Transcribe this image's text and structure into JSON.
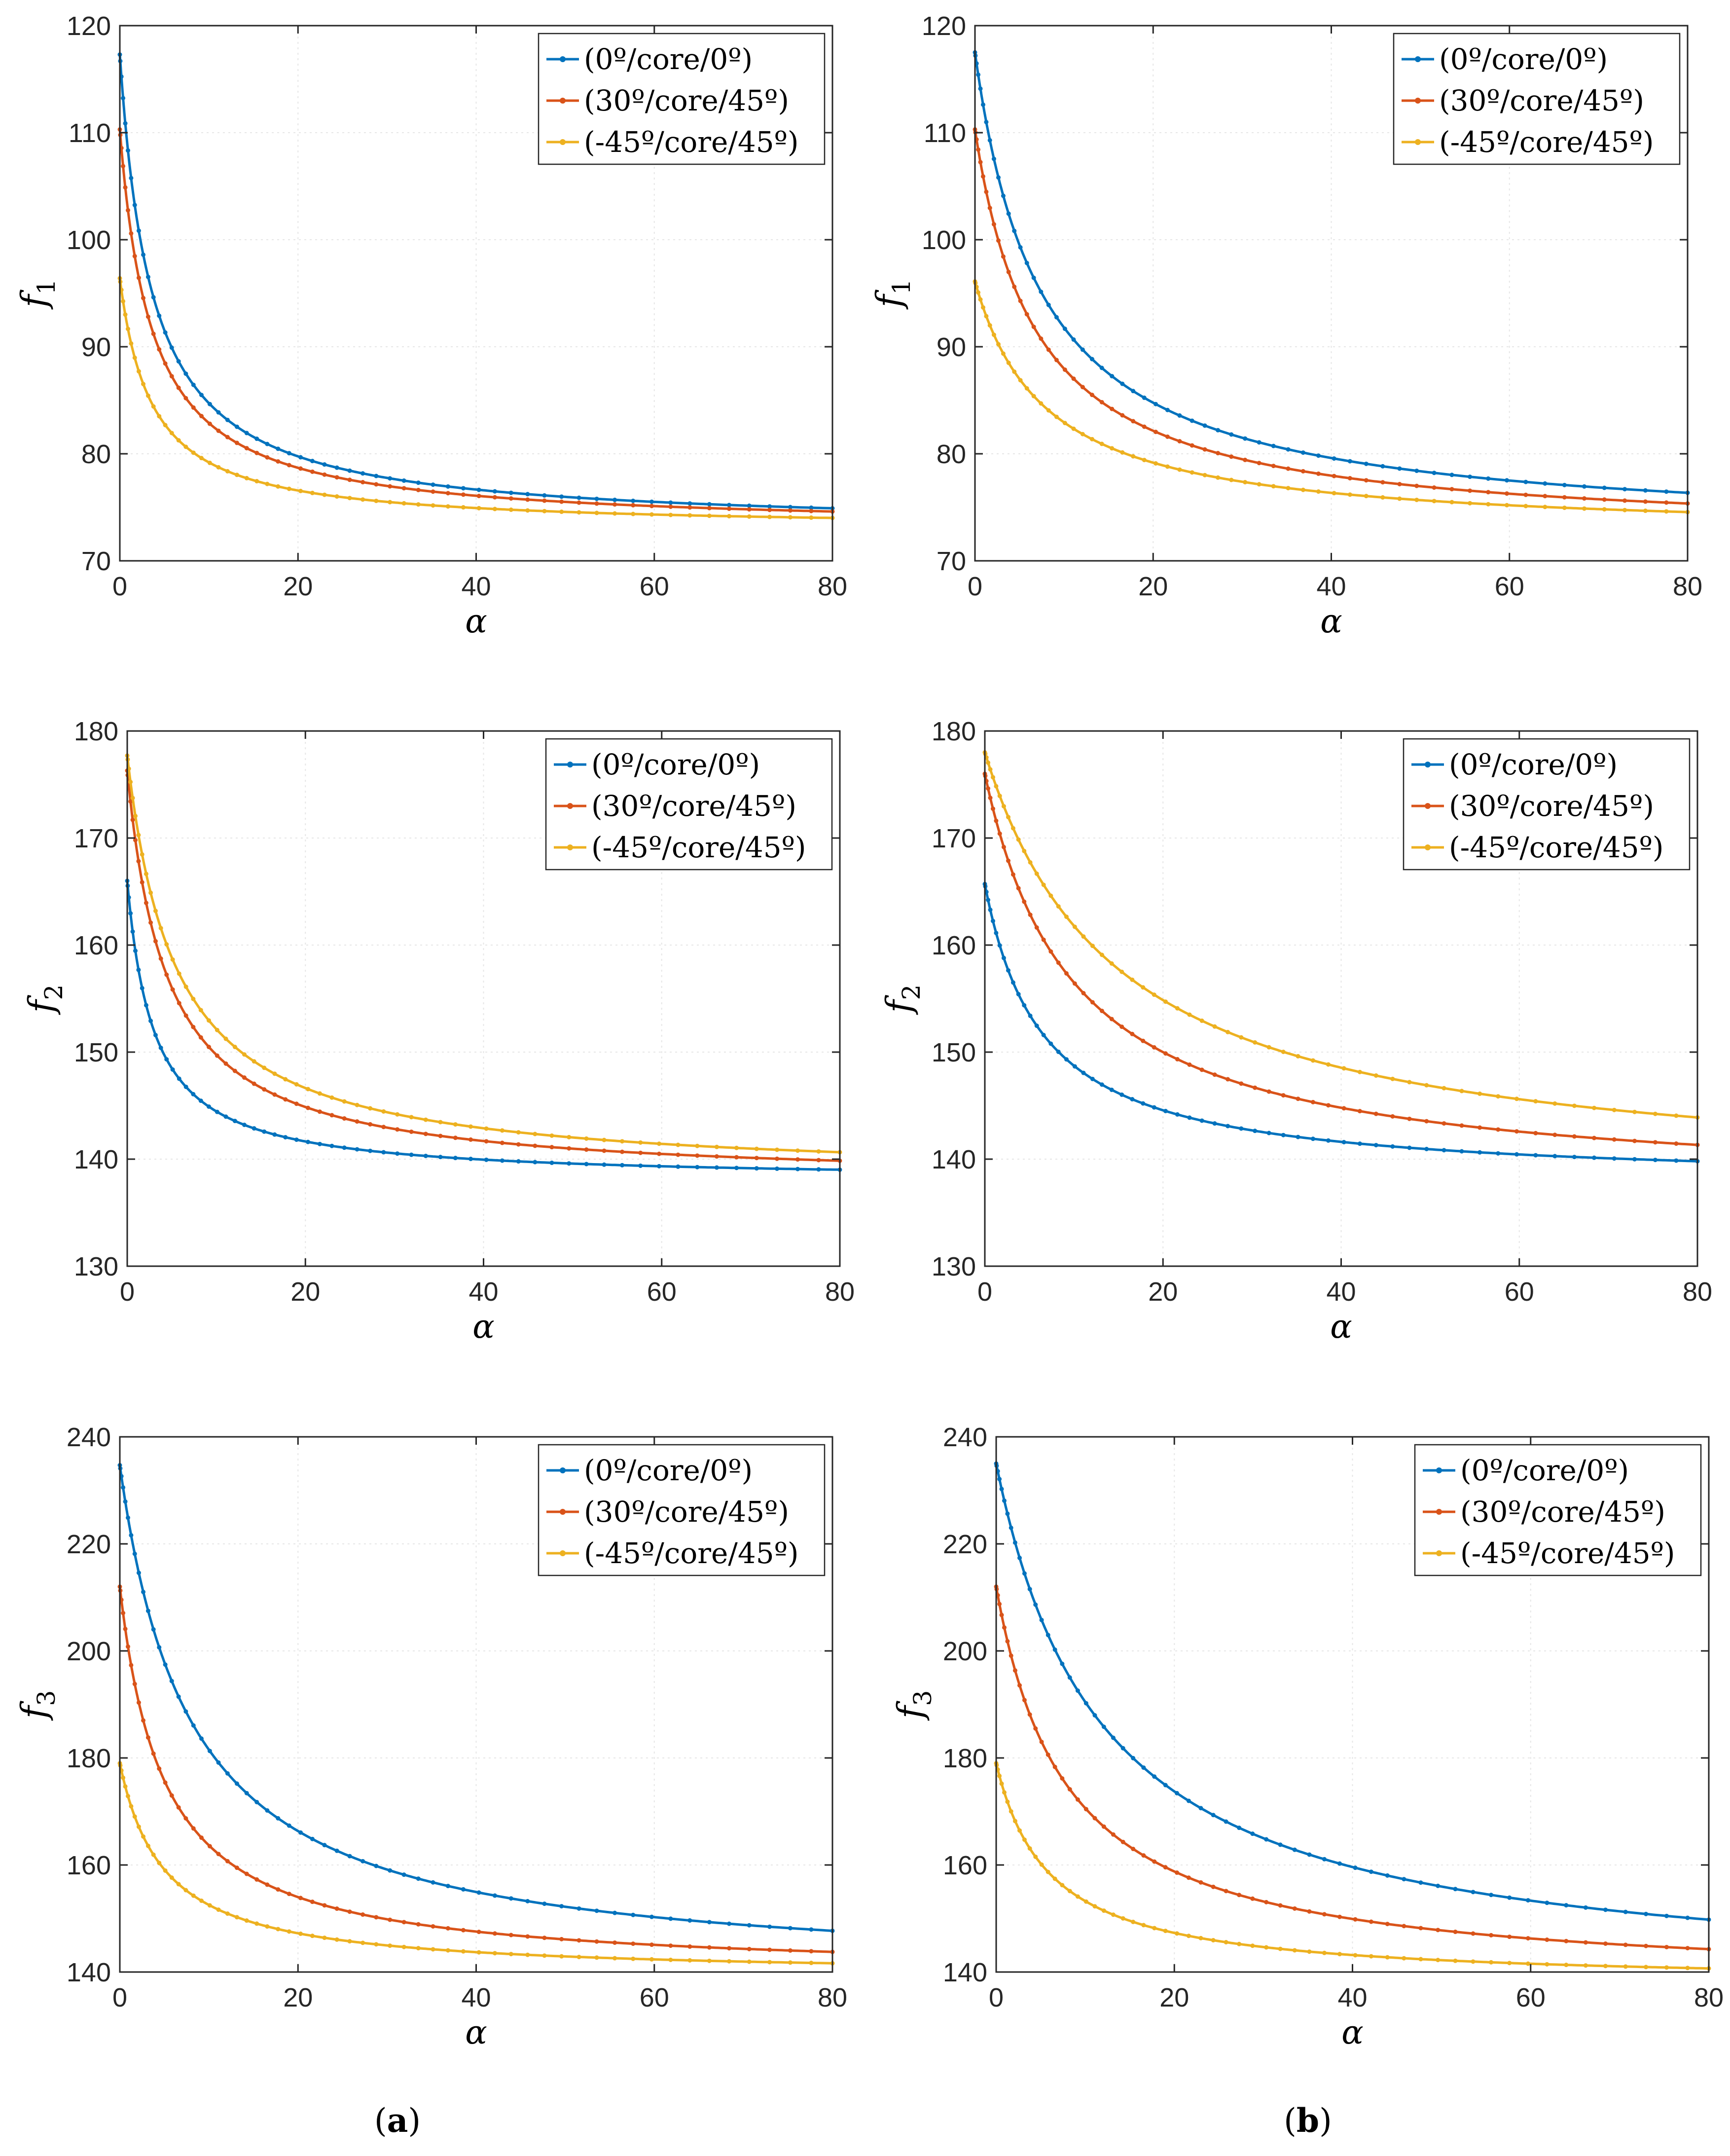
{
  "colors": {
    "series": [
      "#0072BD",
      "#D95319",
      "#EDB120"
    ],
    "axis": "#262626",
    "grid": "#e6e6e6"
  },
  "legend_entries": [
    "(0º/core/0º)",
    "(30º/core/45º)",
    "(-45º/core/45º)"
  ],
  "captions": {
    "a": {
      "open": "(",
      "letter": "a",
      "close": ")"
    },
    "b": {
      "open": "(",
      "letter": "b",
      "close": ")"
    }
  },
  "chart_data": [
    {
      "id": "a1",
      "type": "line",
      "panel": "a",
      "xlabel": "α",
      "ylabel": "f",
      "ylabel_sub": "1",
      "xlim": [
        0,
        80
      ],
      "ylim": [
        70,
        120
      ],
      "xticks": [
        0,
        20,
        40,
        60,
        80
      ],
      "yticks": [
        70,
        80,
        90,
        100,
        110,
        120
      ],
      "grid": true,
      "legend": "top-right",
      "series": [
        {
          "name": "(0º/core/0º)",
          "A": 73.0,
          "B": 44.3,
          "c": 3.6
        },
        {
          "name": "(30º/core/45º)",
          "A": 73.0,
          "B": 37.3,
          "c": 3.6
        },
        {
          "name": "(-45º/core/45º)",
          "A": 73.0,
          "B": 23.4,
          "c": 3.6
        }
      ]
    },
    {
      "id": "b1",
      "type": "line",
      "panel": "b",
      "xlabel": "α",
      "ylabel": "f",
      "ylabel_sub": "1",
      "xlim": [
        0,
        80
      ],
      "ylim": [
        70,
        120
      ],
      "xticks": [
        0,
        20,
        40,
        60,
        80
      ],
      "yticks": [
        70,
        80,
        90,
        100,
        110,
        120
      ],
      "grid": true,
      "legend": "top-right",
      "series": [
        {
          "name": "(0º/core/0º)",
          "A": 72.5,
          "B": 45.0,
          "c": 7.5
        },
        {
          "name": "(30º/core/45º)",
          "A": 72.3,
          "B": 38.0,
          "c": 7.0
        },
        {
          "name": "(-45º/core/45º)",
          "A": 72.4,
          "B": 23.7,
          "c": 8.0
        }
      ]
    },
    {
      "id": "a2",
      "type": "line",
      "panel": "a",
      "xlabel": "α",
      "ylabel": "f",
      "ylabel_sub": "2",
      "xlim": [
        0,
        80
      ],
      "ylim": [
        130,
        180
      ],
      "xticks": [
        0,
        20,
        40,
        60,
        80
      ],
      "yticks": [
        130,
        140,
        150,
        160,
        170,
        180
      ],
      "grid": true,
      "legend": "top-right",
      "series": [
        {
          "name": "(0º/core/0º)",
          "A": 138.0,
          "B": 28.0,
          "c": 3.0
        },
        {
          "name": "(30º/core/45º)",
          "A": 137.8,
          "B": 38.5,
          "c": 4.5
        },
        {
          "name": "(-45º/core/45º)",
          "A": 138.1,
          "B": 39.6,
          "c": 5.5
        }
      ]
    },
    {
      "id": "b2",
      "type": "line",
      "panel": "b",
      "xlabel": "α",
      "ylabel": "f",
      "ylabel_sub": "2",
      "xlim": [
        0,
        80
      ],
      "ylim": [
        130,
        180
      ],
      "xticks": [
        0,
        20,
        40,
        60,
        80
      ],
      "yticks": [
        130,
        140,
        150,
        160,
        170,
        180
      ],
      "grid": true,
      "legend": "top-right",
      "series": [
        {
          "name": "(0º/core/0º)",
          "A": 137.7,
          "B": 28.0,
          "c": 6.5
        },
        {
          "name": "(30º/core/45º)",
          "A": 137.0,
          "B": 39.0,
          "c": 10.0
        },
        {
          "name": "(-45º/core/45º)",
          "A": 137.5,
          "B": 40.5,
          "c": 15.0
        }
      ]
    },
    {
      "id": "a3",
      "type": "line",
      "panel": "a",
      "xlabel": "α",
      "ylabel": "f",
      "ylabel_sub": "3",
      "xlim": [
        0,
        80
      ],
      "ylim": [
        140,
        240
      ],
      "xticks": [
        0,
        20,
        40,
        60,
        80
      ],
      "yticks": [
        140,
        160,
        180,
        200,
        220,
        240
      ],
      "grid": true,
      "legend": "top-right",
      "series": [
        {
          "name": "(0º/core/0º)",
          "A": 139.0,
          "B": 95.7,
          "c": 8.0
        },
        {
          "name": "(30º/core/45º)",
          "A": 139.5,
          "B": 72.5,
          "c": 5.0
        },
        {
          "name": "(-45º/core/45º)",
          "A": 139.3,
          "B": 39.7,
          "c": 5.0
        }
      ]
    },
    {
      "id": "b3",
      "type": "line",
      "panel": "b",
      "xlabel": "α",
      "ylabel": "f",
      "ylabel_sub": "3",
      "xlim": [
        0,
        80
      ],
      "ylim": [
        140,
        240
      ],
      "xticks": [
        0,
        20,
        40,
        60,
        80
      ],
      "yticks": [
        140,
        160,
        180,
        200,
        220,
        240
      ],
      "grid": true,
      "legend": "top-right",
      "series": [
        {
          "name": "(0º/core/0º)",
          "A": 137.0,
          "B": 98.0,
          "c": 12.0
        },
        {
          "name": "(30º/core/45º)",
          "A": 137.5,
          "B": 74.5,
          "c": 8.0
        },
        {
          "name": "(-45º/core/45º)",
          "A": 137.8,
          "B": 41.2,
          "c": 6.0
        }
      ]
    }
  ]
}
